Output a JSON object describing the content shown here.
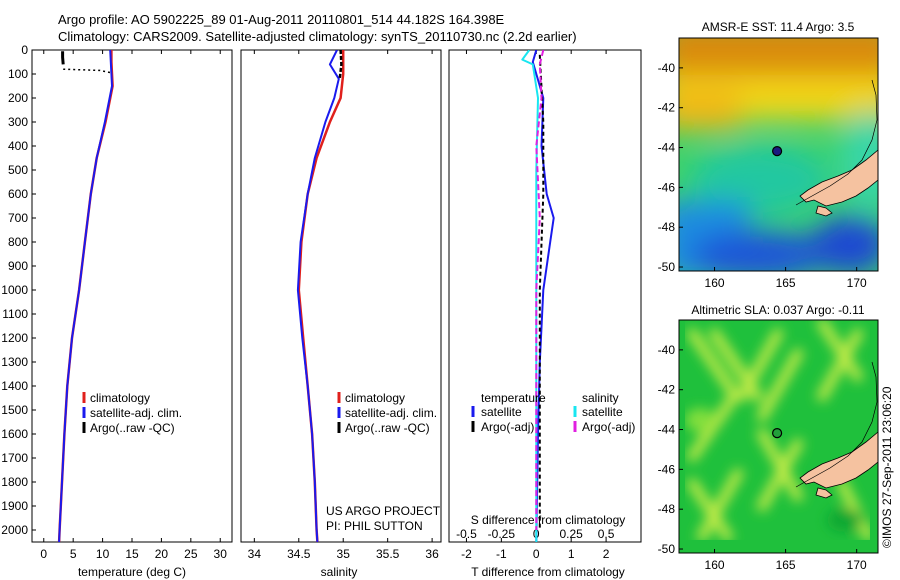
{
  "figure": {
    "title_line1": "Argo profile: AO 5902225_89 01-Aug-2011 20110801_514 44.182S 164.398E",
    "title_line2": "Climatology: CARS2009. Satellite-adjusted climatology: synTS_20110730.nc (2.2d earlier)",
    "credit": "©IMOS 27-Sep-2011 23:06:20",
    "project_line1": "US ARGO PROJECT",
    "project_line2": "PI: PHIL SUTTON"
  },
  "colors": {
    "climatology": "#e0201c",
    "satellite": "#1a1aee",
    "argo": "#000000",
    "salinity_satellite": "#19e6f0",
    "salinity_argo": "#e020e0",
    "land": "#f5c2a0"
  },
  "chart_data": [
    {
      "type": "line",
      "id": "temperature",
      "xlabel": "temperature (deg C)",
      "ylabel": "",
      "xlim": [
        -2,
        32
      ],
      "ylim": [
        2050,
        0
      ],
      "xticks": [
        "0",
        "5",
        "10",
        "15",
        "20",
        "25",
        "30"
      ],
      "yticks": [
        "0",
        "100",
        "200",
        "300",
        "400",
        "500",
        "600",
        "700",
        "800",
        "900",
        "1000",
        "1100",
        "1200",
        "1300",
        "1400",
        "1500",
        "1600",
        "1700",
        "1800",
        "1900",
        "2000"
      ],
      "legend": [
        "climatology",
        "satellite-adj. clim.",
        "Argo(..raw -QC)"
      ],
      "series": [
        {
          "name": "climatology",
          "points": [
            [
              11.5,
              0
            ],
            [
              11.5,
              50
            ],
            [
              11.6,
              100
            ],
            [
              11.7,
              150
            ],
            [
              10.5,
              300
            ],
            [
              9.0,
              450
            ],
            [
              8.0,
              600
            ],
            [
              7.0,
              800
            ],
            [
              6.0,
              1000
            ],
            [
              4.8,
              1200
            ],
            [
              4.0,
              1400
            ],
            [
              3.5,
              1600
            ],
            [
              3.1,
              1800
            ],
            [
              2.7,
              2000
            ],
            [
              2.6,
              2050
            ]
          ]
        },
        {
          "name": "satellite-adj. clim.",
          "points": [
            [
              11.3,
              0
            ],
            [
              11.4,
              50
            ],
            [
              11.5,
              100
            ],
            [
              11.6,
              150
            ],
            [
              10.4,
              300
            ],
            [
              9.0,
              450
            ],
            [
              8.0,
              600
            ],
            [
              7.0,
              800
            ],
            [
              6.0,
              1000
            ],
            [
              4.8,
              1200
            ],
            [
              4.0,
              1400
            ],
            [
              3.5,
              1600
            ],
            [
              3.1,
              1800
            ],
            [
              2.7,
              2000
            ],
            [
              2.6,
              2050
            ]
          ]
        },
        {
          "name": "Argo(..raw -QC)",
          "points": [
            [
              3.2,
              5
            ],
            [
              3.2,
              30
            ],
            [
              3.3,
              60
            ]
          ]
        },
        {
          "name": "Argo raw (dotted)",
          "points": [
            [
              3.3,
              80
            ],
            [
              9.5,
              85
            ],
            [
              11.5,
              95
            ]
          ]
        }
      ]
    },
    {
      "type": "line",
      "id": "salinity",
      "xlabel": "salinity",
      "ylabel": "",
      "xlim": [
        33.85,
        36.1
      ],
      "ylim": [
        2050,
        0
      ],
      "xticks": [
        "34",
        "34.5",
        "35",
        "35.5",
        "36"
      ],
      "legend": [
        "climatology",
        "satellite-adj. clim.",
        "Argo(..raw -QC)"
      ],
      "series": [
        {
          "name": "climatology",
          "points": [
            [
              35.0,
              0
            ],
            [
              35.0,
              100
            ],
            [
              34.97,
              200
            ],
            [
              34.85,
              300
            ],
            [
              34.7,
              450
            ],
            [
              34.6,
              600
            ],
            [
              34.53,
              800
            ],
            [
              34.5,
              1000
            ],
            [
              34.55,
              1200
            ],
            [
              34.6,
              1400
            ],
            [
              34.65,
              1600
            ],
            [
              34.68,
              1800
            ],
            [
              34.7,
              2000
            ],
            [
              34.71,
              2050
            ]
          ]
        },
        {
          "name": "satellite-adj. clim.",
          "points": [
            [
              34.93,
              0
            ],
            [
              34.85,
              60
            ],
            [
              34.95,
              120
            ],
            [
              34.9,
              200
            ],
            [
              34.8,
              300
            ],
            [
              34.68,
              450
            ],
            [
              34.6,
              600
            ],
            [
              34.52,
              800
            ],
            [
              34.49,
              1000
            ],
            [
              34.54,
              1200
            ],
            [
              34.6,
              1400
            ],
            [
              34.65,
              1600
            ],
            [
              34.68,
              1800
            ],
            [
              34.7,
              2000
            ],
            [
              34.71,
              2050
            ]
          ]
        },
        {
          "name": "Argo(..raw -QC)",
          "points": [
            [
              34.97,
              0
            ],
            [
              34.98,
              60
            ],
            [
              34.96,
              120
            ]
          ]
        }
      ]
    },
    {
      "type": "line",
      "id": "differences",
      "xlabel": "T difference from climatology",
      "xlabel_top": "S difference from climatology",
      "xlim": [
        -2.5,
        3
      ],
      "ylim": [
        2050,
        0
      ],
      "xticks": [
        "-2",
        "-1",
        "0",
        "1",
        "2"
      ],
      "xticks_top": [
        "-0.5",
        "-0.25",
        "0",
        "0.25",
        "0.5"
      ],
      "legend_headers": [
        "temperature",
        "salinity"
      ],
      "legend": [
        "satellite",
        "Argo(-adj)",
        "satellite",
        "Argo(-adj)"
      ],
      "series": [
        {
          "name": "temperature satellite",
          "points": [
            [
              0,
              0
            ],
            [
              -0.1,
              50
            ],
            [
              0.0,
              100
            ],
            [
              0.2,
              200
            ],
            [
              0.15,
              400
            ],
            [
              0.3,
              600
            ],
            [
              0.5,
              700
            ],
            [
              0.4,
              800
            ],
            [
              0.2,
              1000
            ],
            [
              0.1,
              1300
            ],
            [
              0.05,
              1600
            ],
            [
              0.0,
              2050
            ]
          ]
        },
        {
          "name": "temperature Argo(-adj)",
          "points": [
            [
              0.1,
              20
            ],
            [
              0.2,
              300
            ],
            [
              0.2,
              600
            ],
            [
              0.1,
              1000
            ],
            [
              0.1,
              1500
            ],
            [
              0.1,
              2000
            ]
          ]
        },
        {
          "name": "salinity satellite",
          "points": [
            [
              -0.2,
              0
            ],
            [
              -0.4,
              40
            ],
            [
              -0.1,
              60
            ],
            [
              0.05,
              200
            ],
            [
              0.0,
              500
            ],
            [
              0.0,
              1000
            ],
            [
              0.0,
              2050
            ]
          ]
        },
        {
          "name": "salinity Argo(-adj)",
          "points": [
            [
              0.2,
              0
            ],
            [
              0.1,
              60
            ],
            [
              0.15,
              200
            ],
            [
              0.0,
              400
            ],
            [
              0.1,
              700
            ],
            [
              0.0,
              1000
            ],
            [
              0.0,
              1500
            ],
            [
              0.0,
              2000
            ]
          ]
        }
      ]
    },
    {
      "type": "heatmap",
      "id": "sst-map",
      "title": "AMSR-E SST: 11.4 Argo: 3.5",
      "xlim": [
        157.5,
        171.5
      ],
      "ylim": [
        -50.2,
        -38.5
      ],
      "xticks": [
        "160",
        "165",
        "170"
      ],
      "yticks": [
        "-40",
        "-42",
        "-44",
        "-46",
        "-48",
        "-50"
      ],
      "float_position": [
        164.4,
        -44.18
      ]
    },
    {
      "type": "heatmap",
      "id": "sla-map",
      "title": "Altimetric SLA: 0.037 Argo: -0.11",
      "xlim": [
        157.5,
        171.5
      ],
      "ylim": [
        -50.2,
        -38.5
      ],
      "xticks": [
        "160",
        "165",
        "170"
      ],
      "yticks": [
        "-40",
        "-42",
        "-44",
        "-46",
        "-48",
        "-50"
      ],
      "float_position": [
        164.4,
        -44.18
      ]
    }
  ]
}
